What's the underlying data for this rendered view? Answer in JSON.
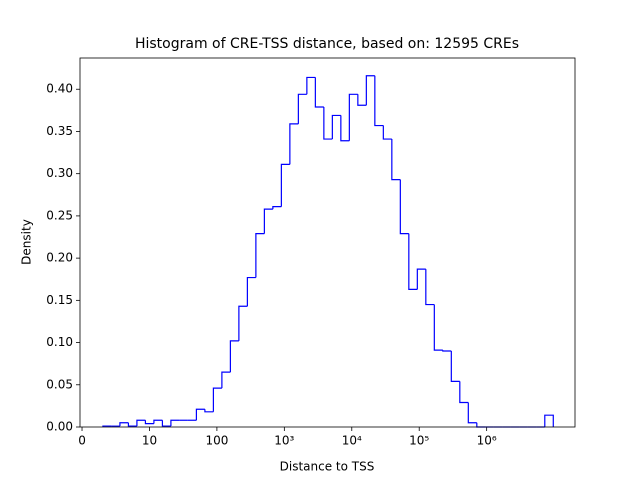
{
  "chart_data": {
    "type": "histogram",
    "title": "Histogram of CRE-TSS distance, based on: 12595 CREs",
    "xlabel": "Distance to TSS",
    "ylabel": "Density",
    "color": "#0000ff",
    "bins": [
      0.31,
      0.436,
      0.562,
      0.688,
      0.814,
      0.94,
      1.066,
      1.192,
      1.318,
      1.444,
      1.57,
      1.696,
      1.822,
      1.948,
      2.074,
      2.2,
      2.326,
      2.452,
      2.578,
      2.704,
      2.83,
      2.956,
      3.082,
      3.208,
      3.334,
      3.46,
      3.586,
      3.712,
      3.838,
      3.964,
      4.09,
      4.216,
      4.342,
      4.468,
      4.594,
      4.72,
      4.846,
      4.972,
      5.098,
      5.224,
      5.35,
      5.476,
      5.602,
      5.728,
      5.854,
      5.98,
      6.106,
      6.232,
      6.358,
      6.484,
      6.61,
      6.736,
      6.862,
      6.988
    ],
    "values": [
      0.001,
      0.001,
      0.005,
      0.001,
      0.008,
      0.004,
      0.008,
      0.001,
      0.008,
      0.008,
      0.008,
      0.021,
      0.018,
      0.046,
      0.065,
      0.102,
      0.143,
      0.177,
      0.229,
      0.258,
      0.261,
      0.311,
      0.359,
      0.394,
      0.414,
      0.379,
      0.341,
      0.369,
      0.339,
      0.394,
      0.381,
      0.416,
      0.357,
      0.341,
      0.293,
      0.229,
      0.163,
      0.187,
      0.145,
      0.091,
      0.09,
      0.054,
      0.029,
      0.005,
      0,
      0,
      0,
      0,
      0,
      0,
      0,
      0,
      0.014
    ],
    "xlim": [
      -0.03,
      7.31
    ],
    "xticks": [
      {
        "value": 0,
        "label": "0"
      },
      {
        "value": 1,
        "label": "10"
      },
      {
        "value": 2,
        "label": "100"
      },
      {
        "value": 3,
        "label": "10³"
      },
      {
        "value": 4,
        "label": "10⁴"
      },
      {
        "value": 5,
        "label": "10⁵"
      },
      {
        "value": 6,
        "label": "10⁶"
      }
    ],
    "ylim": [
      0,
      0.437
    ],
    "yticks": [
      {
        "value": 0,
        "label": "0.00"
      },
      {
        "value": 0.05,
        "label": "0.05"
      },
      {
        "value": 0.1,
        "label": "0.10"
      },
      {
        "value": 0.15,
        "label": "0.15"
      },
      {
        "value": 0.2,
        "label": "0.20"
      },
      {
        "value": 0.25,
        "label": "0.25"
      },
      {
        "value": 0.3,
        "label": "0.30"
      },
      {
        "value": 0.35,
        "label": "0.35"
      },
      {
        "value": 0.4,
        "label": "0.40"
      }
    ],
    "grid": false
  }
}
